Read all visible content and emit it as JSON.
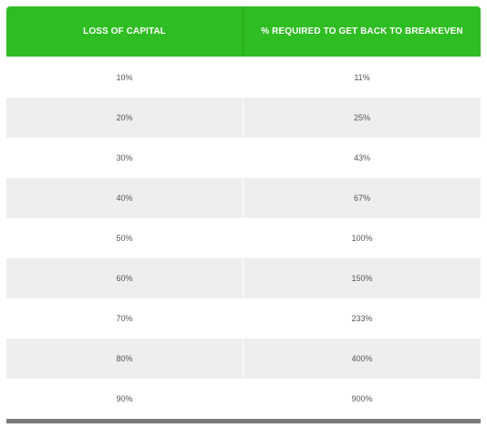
{
  "table": {
    "headers": [
      "LOSS OF CAPITAL",
      "% REQUIRED TO GET BACK TO BREAKEVEN"
    ],
    "rows": [
      [
        "10%",
        "11%"
      ],
      [
        "20%",
        "25%"
      ],
      [
        "30%",
        "43%"
      ],
      [
        "40%",
        "67%"
      ],
      [
        "50%",
        "100%"
      ],
      [
        "60%",
        "150%"
      ],
      [
        "70%",
        "233%"
      ],
      [
        "80%",
        "400%"
      ],
      [
        "90%",
        "900%"
      ]
    ]
  },
  "colors": {
    "header_bg": "#2ebd22",
    "header_text": "#ffffff",
    "row_alt_bg": "#eeeeee",
    "footer_bar": "#7a7a7a"
  }
}
